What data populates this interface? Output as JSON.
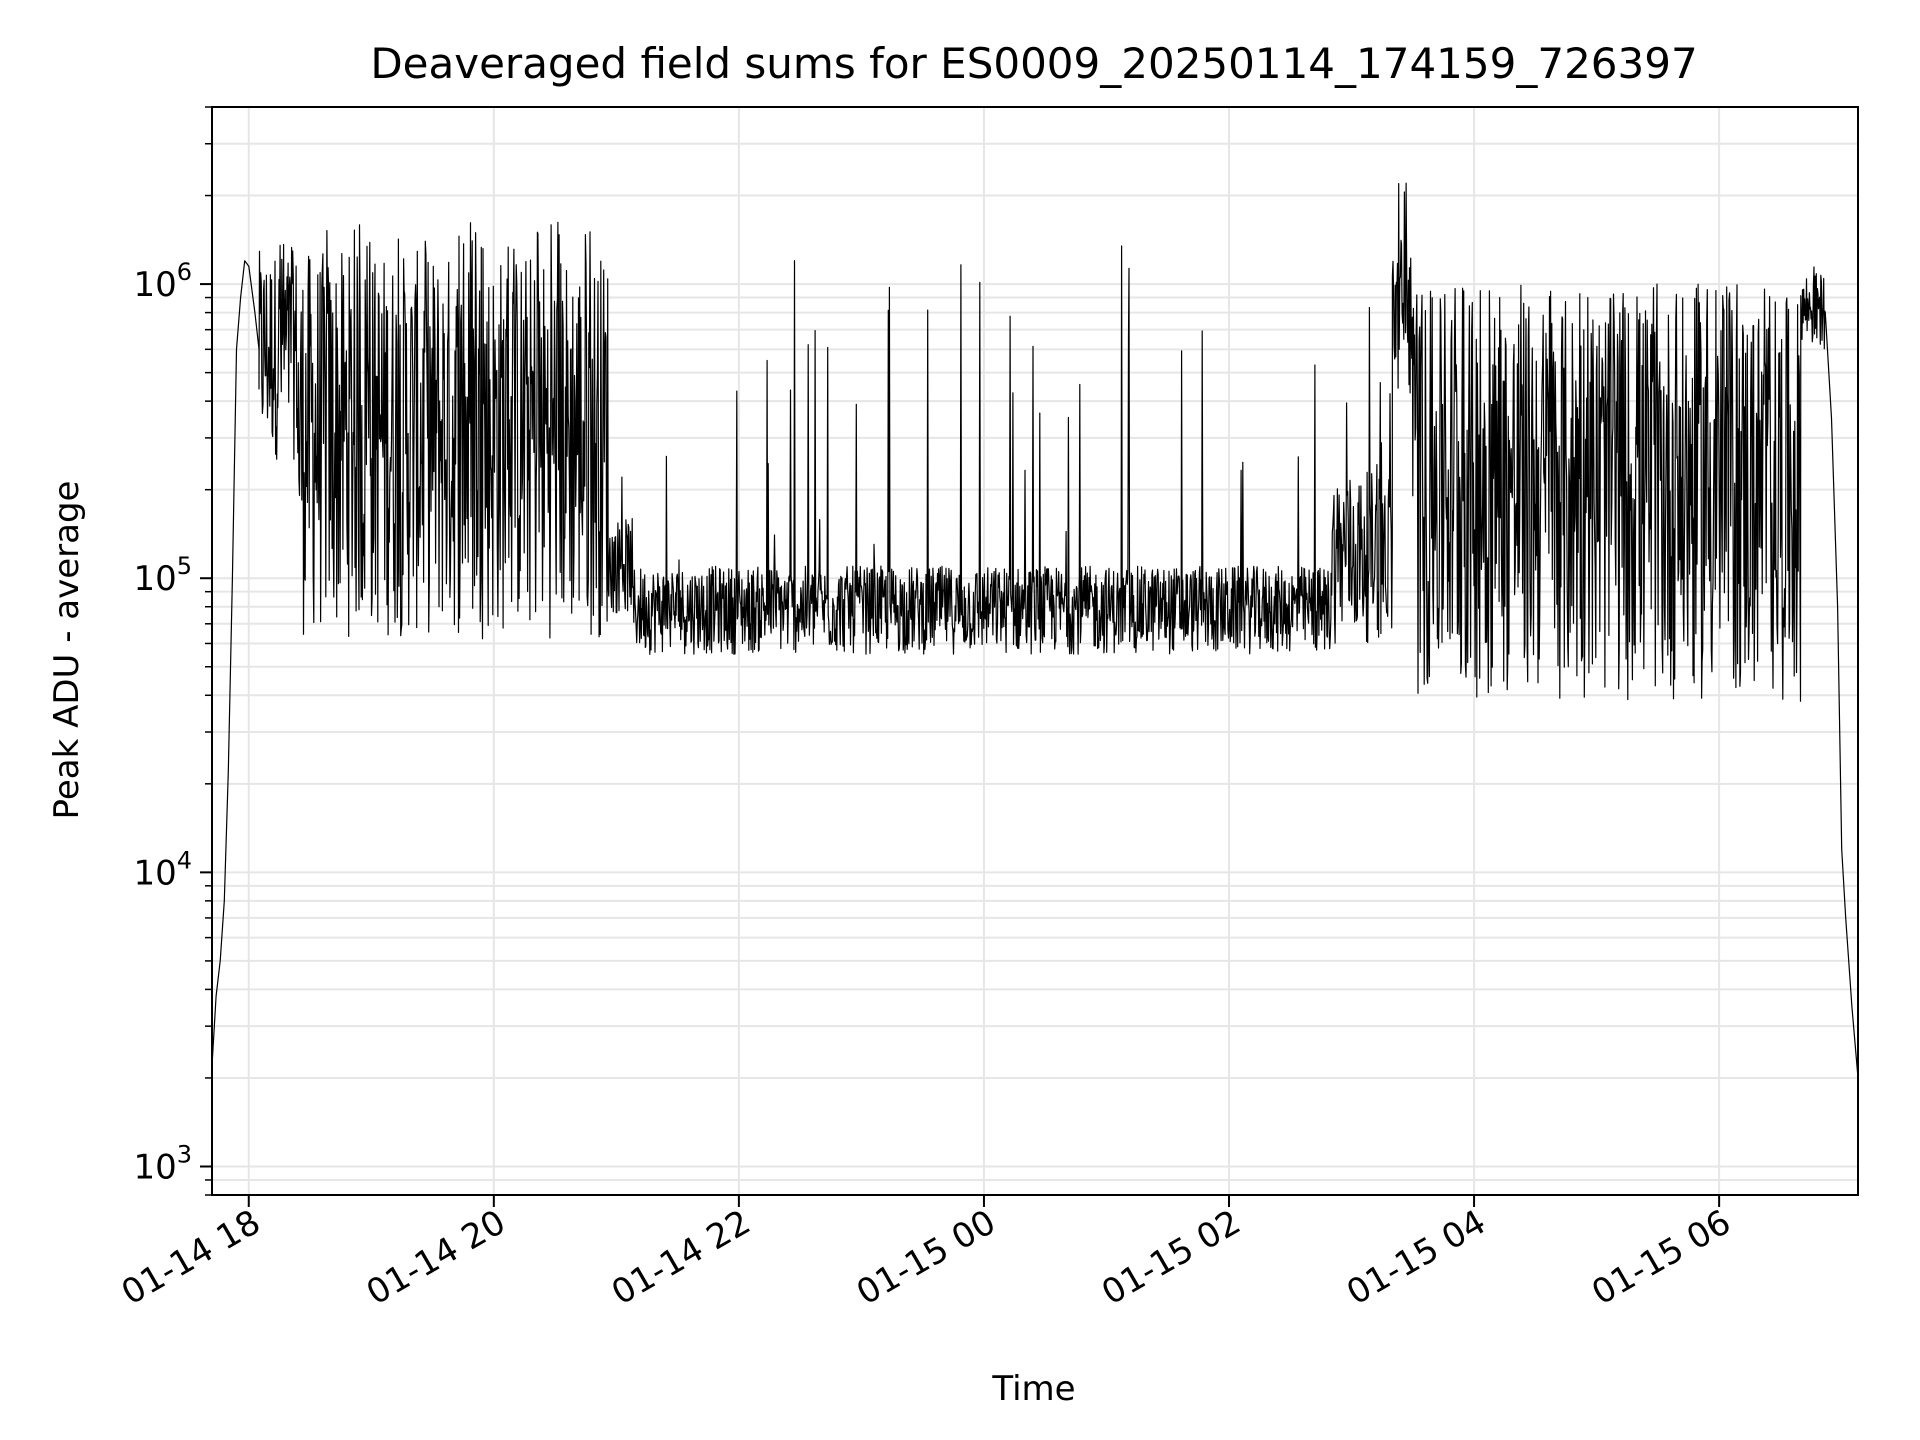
{
  "chart_data": {
    "type": "line",
    "title": "Deaveraged field sums for ES0009_20250114_174159_726397",
    "xlabel": "Time",
    "ylabel": "Peak ADU - average",
    "yscale": "log",
    "ylim": [
      800,
      4000000
    ],
    "xlim": [
      "2025-01-14 17:42",
      "2025-01-15 07:08"
    ],
    "grid": true,
    "line_color": "#000000",
    "grid_color": "#e6e6e6",
    "x_ticks": [
      {
        "time": "2025-01-14 18:00",
        "label": "01-14 18"
      },
      {
        "time": "2025-01-14 20:00",
        "label": "01-14 20"
      },
      {
        "time": "2025-01-14 22:00",
        "label": "01-14 22"
      },
      {
        "time": "2025-01-15 00:00",
        "label": "01-15 00"
      },
      {
        "time": "2025-01-15 02:00",
        "label": "01-15 02"
      },
      {
        "time": "2025-01-15 04:00",
        "label": "01-15 04"
      },
      {
        "time": "2025-01-15 06:00",
        "label": "01-15 06"
      }
    ],
    "y_ticks": [
      {
        "value": 1000,
        "base": "10",
        "exp": "3"
      },
      {
        "value": 10000,
        "base": "10",
        "exp": "4"
      },
      {
        "value": 100000,
        "base": "10",
        "exp": "5"
      },
      {
        "value": 1000000,
        "base": "10",
        "exp": "6"
      }
    ],
    "series": [
      {
        "points": [
          [
            "2025-01-14 17:42",
            2200
          ],
          [
            "2025-01-14 17:44",
            3800
          ],
          [
            "2025-01-14 17:46",
            5000
          ],
          [
            "2025-01-14 17:48",
            8000
          ],
          [
            "2025-01-14 17:50",
            22000
          ],
          [
            "2025-01-14 17:52",
            100000
          ],
          [
            "2025-01-14 17:54",
            600000
          ],
          [
            "2025-01-14 17:56",
            900000
          ],
          [
            "2025-01-14 17:58",
            1200000
          ],
          [
            "2025-01-14 18:00",
            1150000
          ],
          [
            "2025-01-14 18:03",
            800000
          ],
          [
            "2025-01-14 18:05",
            600000
          ]
        ],
        "segments": [
          {
            "start": "2025-01-14 18:05",
            "end": "2025-01-14 18:24",
            "low": 250000,
            "high": 1300000,
            "spike_max": 1400000
          },
          {
            "start": "2025-01-14 18:24",
            "end": "2025-01-14 20:56",
            "low": 62000,
            "high": 1300000,
            "spike_max": 1650000
          },
          {
            "start": "2025-01-14 20:56",
            "end": "2025-01-14 21:08",
            "low": 75000,
            "high": 160000,
            "spike_max": 1000000
          },
          {
            "start": "2025-01-14 21:08",
            "end": "2025-01-15 02:50",
            "low": 55000,
            "high": 110000,
            "spike_max": 1700000
          },
          {
            "start": "2025-01-15 02:50",
            "end": "2025-01-15 03:20",
            "low": 60000,
            "high": 230000,
            "spike_max": 1000000
          },
          {
            "start": "2025-01-15 03:20",
            "end": "2025-01-15 03:30",
            "low": 400000,
            "high": 1500000,
            "spike_max": 2700000
          },
          {
            "start": "2025-01-15 03:30",
            "end": "2025-01-15 06:40",
            "low": 38000,
            "high": 900000,
            "spike_max": 1000000
          },
          {
            "start": "2025-01-15 06:40",
            "end": "2025-01-15 06:52",
            "low": 600000,
            "high": 1100000,
            "spike_max": 1300000
          }
        ],
        "tail": [
          [
            "2025-01-15 06:52",
            800000
          ],
          [
            "2025-01-15 06:55",
            350000
          ],
          [
            "2025-01-15 06:58",
            80000
          ],
          [
            "2025-01-15 07:00",
            12000
          ],
          [
            "2025-01-15 07:02",
            7000
          ],
          [
            "2025-01-15 07:05",
            3500
          ],
          [
            "2025-01-15 07:08",
            2000
          ]
        ]
      }
    ]
  }
}
